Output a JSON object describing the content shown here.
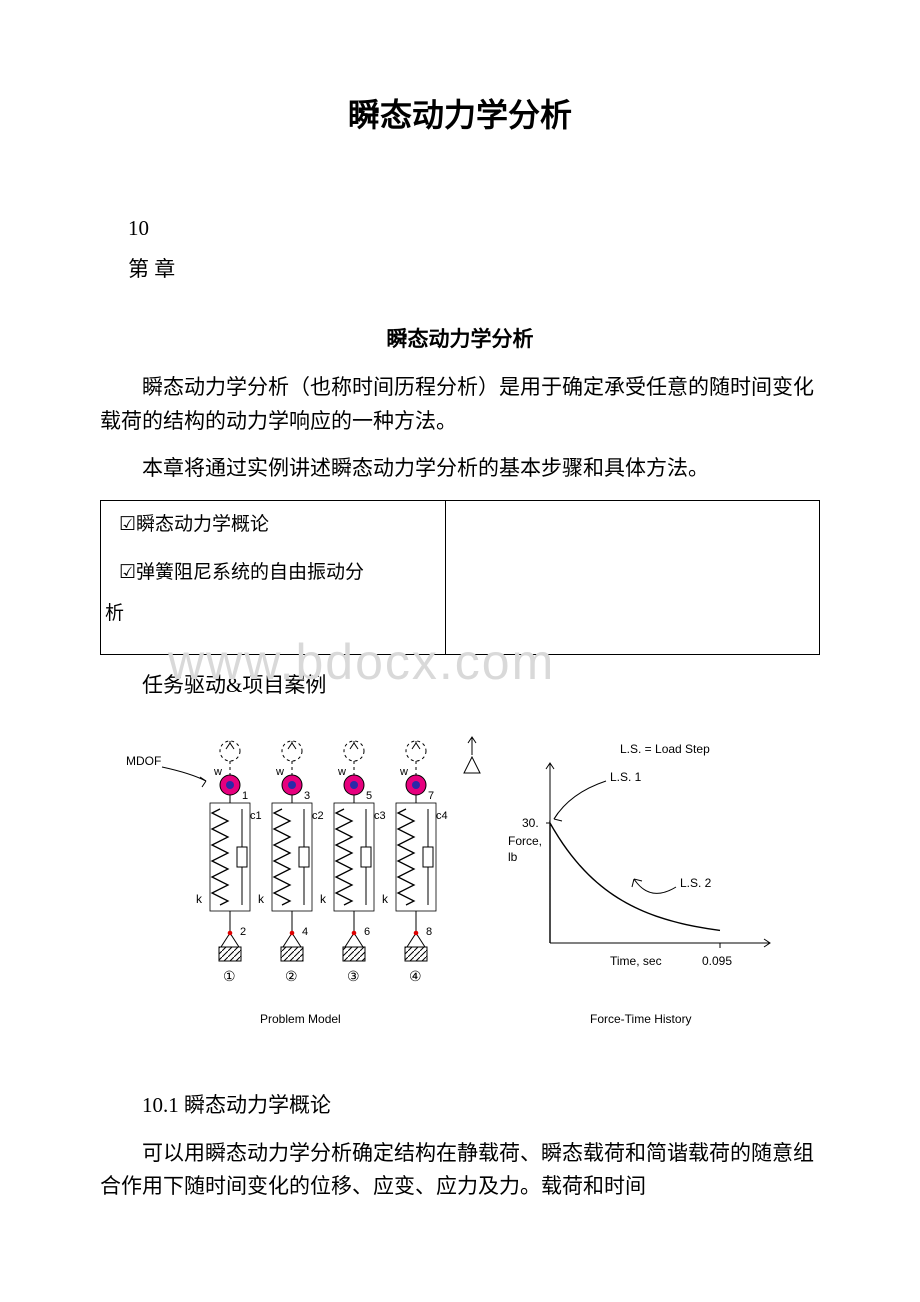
{
  "title": "瞬态动力学分析",
  "chapter_number": "10",
  "chapter_word": "第 章",
  "subtitle": "瞬态动力学分析",
  "intro_p1": "瞬态动力学分析（也称时间历程分析）是用于确定承受任意的随时间变化载荷的结构的动力学响应的一种方法。",
  "intro_p2": "本章将通过实例讲述瞬态动力学分析的基本步骤和具体方法。",
  "checklist": {
    "mark": "☑",
    "item1": "瞬态动力学概论",
    "item2_line": "弹簧阻尼系统的自由振动分",
    "item2_tail": "析"
  },
  "caption": "任务驱动&项目案例",
  "watermark": "www.bdocx.com",
  "figure": {
    "mdof_label": "MDOF",
    "springs": [
      "k",
      "k",
      "k",
      "k"
    ],
    "dampers": [
      "c1",
      "c2",
      "c3",
      "c4"
    ],
    "top_nodes": [
      "1",
      "3",
      "5",
      "7"
    ],
    "bot_nodes": [
      "2",
      "4",
      "6",
      "8"
    ],
    "circled": [
      "①",
      "②",
      "③",
      "④"
    ],
    "weight_label": "w",
    "left_caption": "Problem Model",
    "right_caption": "Force-Time History",
    "chart": {
      "legend": "L.S. = Load Step",
      "ls1": "L.S. 1",
      "ls2": "L.S. 2",
      "y_value": "30.",
      "y_label1": "Force,",
      "y_label2": "lb",
      "x_label": "Time, sec",
      "x_value": "0.095",
      "colors": {
        "mass_fill": "#e6007e",
        "mass_inner": "#2a2aa8",
        "line": "#000000",
        "text": "#000000"
      }
    }
  },
  "section_heading": "10.1 瞬态动力学概论",
  "body_p": "可以用瞬态动力学分析确定结构在静载荷、瞬态载荷和简谐载荷的随意组合作用下随时间变化的位移、应变、应力及力。载荷和时间"
}
